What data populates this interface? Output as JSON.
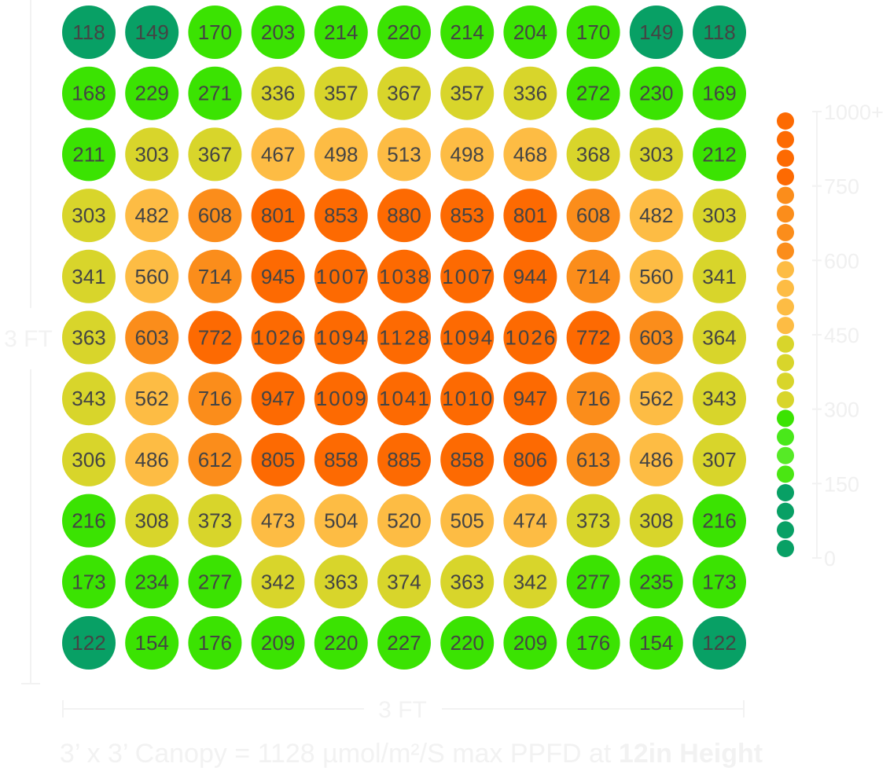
{
  "chart_data": {
    "type": "heatmap",
    "unit": "µmol/m²/S",
    "rows": 11,
    "cols": 11,
    "values": [
      [
        118,
        149,
        170,
        203,
        214,
        220,
        214,
        204,
        170,
        149,
        118
      ],
      [
        168,
        229,
        271,
        336,
        357,
        367,
        357,
        336,
        272,
        230,
        169
      ],
      [
        211,
        303,
        367,
        467,
        498,
        513,
        498,
        468,
        368,
        303,
        212
      ],
      [
        303,
        482,
        608,
        801,
        853,
        880,
        853,
        801,
        608,
        482,
        303
      ],
      [
        341,
        560,
        714,
        945,
        1007,
        1038,
        1007,
        944,
        714,
        560,
        341
      ],
      [
        363,
        603,
        772,
        1026,
        1094,
        1128,
        1094,
        1026,
        772,
        603,
        364
      ],
      [
        343,
        562,
        716,
        947,
        1009,
        1041,
        1010,
        947,
        716,
        562,
        343
      ],
      [
        306,
        486,
        612,
        805,
        858,
        885,
        858,
        806,
        613,
        486,
        307
      ],
      [
        216,
        308,
        373,
        473,
        504,
        520,
        505,
        474,
        373,
        308,
        216
      ],
      [
        173,
        234,
        277,
        342,
        363,
        374,
        363,
        342,
        277,
        235,
        173
      ],
      [
        122,
        154,
        176,
        209,
        220,
        227,
        220,
        209,
        176,
        154,
        122
      ]
    ],
    "color_scale": [
      {
        "min": 0,
        "max": 150,
        "color": "#08a065"
      },
      {
        "min": 150,
        "max": 300,
        "color": "#3be302"
      },
      {
        "min": 300,
        "max": 450,
        "color": "#d8d52b"
      },
      {
        "min": 450,
        "max": 600,
        "color": "#fdbc44"
      },
      {
        "min": 600,
        "max": 750,
        "color": "#fb8d1b"
      },
      {
        "min": 750,
        "max": 1200,
        "color": "#fd6a02"
      }
    ],
    "legend": {
      "ticks": [
        "1000+",
        "750",
        "600",
        "450",
        "300",
        "150",
        "0"
      ],
      "dots": [
        "#fd6a02",
        "#fd6a02",
        "#fd6a02",
        "#fd6a02",
        "#fb8d1b",
        "#fb8d1b",
        "#fb8d1b",
        "#fb8d1b",
        "#fdbc44",
        "#fdbc44",
        "#fdbc44",
        "#fdbc44",
        "#d8d52b",
        "#d8d52b",
        "#d8d52b",
        "#d8d52b",
        "#3be302",
        "#49e81a",
        "#56ea26",
        "#4ae612",
        "#08a065",
        "#08a065",
        "#08a065",
        "#08a065"
      ]
    },
    "x_dimension_label": "3 FT",
    "y_dimension_label": "3 FT"
  },
  "caption": {
    "prefix": "3’ x 3’ Canopy = 1128 µmol/m²/S max PPFD at ",
    "bold": "12in Height"
  }
}
